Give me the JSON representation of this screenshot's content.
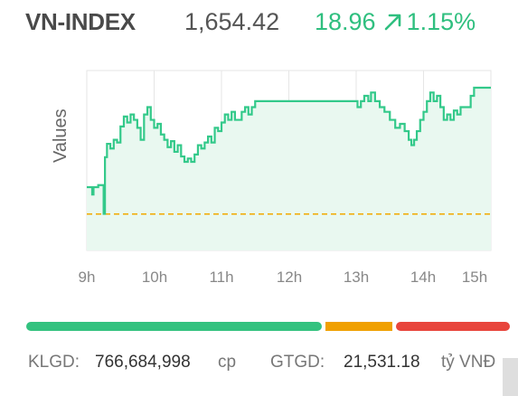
{
  "header": {
    "index_name": "VN-INDEX",
    "index_value": "1,654.42",
    "change_points": "18.96",
    "change_percent": "1.15%",
    "direction": "up"
  },
  "colors": {
    "up": "#2fbf7f",
    "line": "#33c98a",
    "fill": "#e9f8f0",
    "reference": "#f2a900",
    "bar_up": "#33c27f",
    "bar_flat": "#f0a000",
    "bar_down": "#e8453c"
  },
  "chart_data": {
    "type": "area",
    "ylabel": "Values",
    "xlabel": "",
    "x_ticks": [
      "9h",
      "10h",
      "11h",
      "12h",
      "13h",
      "14h",
      "15h"
    ],
    "reference_value": 1635.46,
    "ylim": [
      1630,
      1657
    ],
    "points": [
      [
        9.0,
        1639.5
      ],
      [
        9.07,
        1639.5
      ],
      [
        9.08,
        1638.4
      ],
      [
        9.1,
        1639.5
      ],
      [
        9.17,
        1639.8
      ],
      [
        9.25,
        1635.5
      ],
      [
        9.27,
        1644.0
      ],
      [
        9.3,
        1646.0
      ],
      [
        9.35,
        1645.3
      ],
      [
        9.4,
        1646.6
      ],
      [
        9.45,
        1646.2
      ],
      [
        9.5,
        1648.6
      ],
      [
        9.55,
        1650.1
      ],
      [
        9.6,
        1649.2
      ],
      [
        9.65,
        1650.4
      ],
      [
        9.7,
        1649.6
      ],
      [
        9.75,
        1648.4
      ],
      [
        9.8,
        1646.6
      ],
      [
        9.85,
        1650.4
      ],
      [
        9.9,
        1651.5
      ],
      [
        9.95,
        1649.6
      ],
      [
        10.0,
        1648.4
      ],
      [
        10.05,
        1649.0
      ],
      [
        10.1,
        1647.4
      ],
      [
        10.15,
        1646.6
      ],
      [
        10.2,
        1645.5
      ],
      [
        10.25,
        1646.4
      ],
      [
        10.3,
        1644.8
      ],
      [
        10.35,
        1645.8
      ],
      [
        10.4,
        1644.1
      ],
      [
        10.45,
        1643.3
      ],
      [
        10.5,
        1643.8
      ],
      [
        10.55,
        1643.3
      ],
      [
        10.6,
        1644.4
      ],
      [
        10.65,
        1645.8
      ],
      [
        10.7,
        1645.3
      ],
      [
        10.75,
        1646.2
      ],
      [
        10.8,
        1647.1
      ],
      [
        10.85,
        1646.2
      ],
      [
        10.9,
        1648.4
      ],
      [
        10.95,
        1647.9
      ],
      [
        11.0,
        1649.2
      ],
      [
        11.05,
        1650.4
      ],
      [
        11.1,
        1649.6
      ],
      [
        11.15,
        1650.8
      ],
      [
        11.2,
        1649.6
      ],
      [
        11.3,
        1650.8
      ],
      [
        11.35,
        1651.5
      ],
      [
        11.4,
        1650.4
      ],
      [
        11.45,
        1651.5
      ],
      [
        11.5,
        1652.4
      ],
      [
        12.0,
        1652.4
      ],
      [
        12.5,
        1652.4
      ],
      [
        13.0,
        1652.4
      ],
      [
        13.02,
        1651.5
      ],
      [
        13.07,
        1652.4
      ],
      [
        13.12,
        1653.2
      ],
      [
        13.18,
        1652.4
      ],
      [
        13.22,
        1653.7
      ],
      [
        13.28,
        1652.4
      ],
      [
        13.35,
        1651.5
      ],
      [
        13.42,
        1650.8
      ],
      [
        13.5,
        1649.6
      ],
      [
        13.58,
        1648.4
      ],
      [
        13.65,
        1649.0
      ],
      [
        13.72,
        1647.9
      ],
      [
        13.78,
        1646.6
      ],
      [
        13.82,
        1645.8
      ],
      [
        13.86,
        1646.6
      ],
      [
        13.9,
        1647.9
      ],
      [
        13.95,
        1649.6
      ],
      [
        14.0,
        1650.8
      ],
      [
        14.05,
        1652.4
      ],
      [
        14.1,
        1653.7
      ],
      [
        14.15,
        1652.4
      ],
      [
        14.2,
        1653.2
      ],
      [
        14.25,
        1651.5
      ],
      [
        14.3,
        1649.6
      ],
      [
        14.35,
        1650.4
      ],
      [
        14.4,
        1649.6
      ],
      [
        14.45,
        1651.0
      ],
      [
        14.5,
        1650.4
      ],
      [
        14.55,
        1651.5
      ],
      [
        14.65,
        1651.5
      ],
      [
        14.7,
        1653.2
      ],
      [
        14.75,
        1654.42
      ],
      [
        15.0,
        1654.42
      ]
    ]
  },
  "breadth_bar": {
    "up_fraction": 0.62,
    "flat_fraction": 0.14,
    "down_fraction": 0.24
  },
  "footer": {
    "volume_label": "KLGD:",
    "volume_value": "766,684,998",
    "volume_unit": "cp",
    "value_label": "GTGD:",
    "value_value": "21,531.18",
    "value_unit": "tỷ VNĐ"
  }
}
